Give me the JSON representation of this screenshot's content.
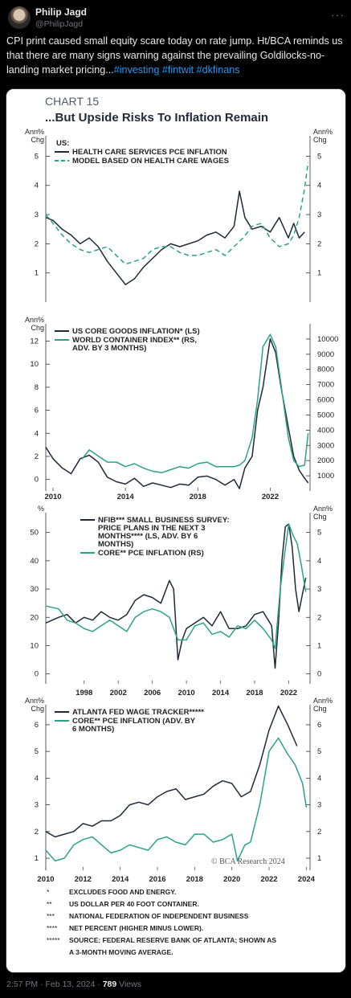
{
  "tweet": {
    "author_name": "Philip Jagd",
    "author_handle": "@PhilipJagd",
    "more_label": "···",
    "text_plain": "CPI print caused small equity scare today on rate jump. Ht/BCA reminds us that there are many signs warning against the prevailing Goldilocks-no-landing market pricing...",
    "hashtags": [
      "#investing",
      "#fintwit",
      "#dkfinans"
    ],
    "time": "2:57 PM",
    "date": "Feb 13, 2024",
    "views_count": "789",
    "views_label": "Views"
  },
  "colors": {
    "dark_series": "#1f2a36",
    "green_series": "#2aa384",
    "background": "#000000",
    "link": "#1d9bf0"
  },
  "figure": {
    "chart_number": "CHART 15",
    "chart_title": "...But Upside Risks To Inflation Remain",
    "credit": "© BCA Research 2024",
    "footnotes": [
      {
        "mark": "*",
        "text": "EXCLUDES FOOD AND ENERGY."
      },
      {
        "mark": "**",
        "text": "US DOLLAR PER 40 FOOT CONTAINER."
      },
      {
        "mark": "***",
        "text": "NATIONAL FEDERATION OF INDEPENDENT BUSINESS"
      },
      {
        "mark": "****",
        "text": "NET PERCENT (HIGHER MINUS LOWER)."
      },
      {
        "mark": "*****",
        "text": "SOURCE: FEDERAL RESERVE BANK OF ATLANTA; SHOWN AS"
      },
      {
        "mark": "",
        "text": "A 3-MONTH MOVING AVERAGE."
      }
    ]
  },
  "chart_data": [
    {
      "type": "line",
      "ylabel_left": "Ann% Chg",
      "ylabel_right": "Ann% Chg",
      "legend_heading": "US:",
      "ylim": [
        0,
        5.7
      ],
      "yticks": [
        1,
        2,
        3,
        4,
        5
      ],
      "x_range": [
        2009.6,
        2024.2
      ],
      "series": [
        {
          "name": "HEALTH CARE SERVICES PCE INFLATION",
          "style": "solid",
          "color": "#1f2a36",
          "x": [
            2009.6,
            2010.0,
            2010.5,
            2011.0,
            2011.5,
            2012.0,
            2012.5,
            2013.0,
            2013.5,
            2014.0,
            2014.5,
            2015.0,
            2015.5,
            2016.0,
            2016.5,
            2017.0,
            2017.5,
            2018.0,
            2018.5,
            2019.0,
            2019.5,
            2020.0,
            2020.3,
            2020.6,
            2021.0,
            2021.5,
            2022.0,
            2022.5,
            2023.0,
            2023.3,
            2023.6,
            2023.9
          ],
          "y": [
            2.9,
            2.8,
            2.5,
            2.3,
            2.0,
            2.2,
            1.9,
            1.4,
            1.0,
            0.6,
            0.8,
            1.2,
            1.5,
            1.8,
            2.0,
            1.9,
            2.0,
            2.1,
            2.3,
            2.4,
            2.2,
            2.6,
            3.8,
            2.9,
            2.5,
            2.6,
            2.4,
            2.9,
            2.2,
            2.7,
            2.2,
            2.4
          ]
        },
        {
          "name": "MODEL BASED ON HEALTH CARE WAGES",
          "style": "dashed",
          "color": "#2aa384",
          "x": [
            2009.6,
            2010.0,
            2010.5,
            2011.0,
            2011.5,
            2012.0,
            2012.5,
            2013.0,
            2013.5,
            2014.0,
            2014.5,
            2015.0,
            2015.5,
            2016.0,
            2016.5,
            2017.0,
            2017.5,
            2018.0,
            2018.5,
            2019.0,
            2019.5,
            2020.0,
            2020.5,
            2021.0,
            2021.5,
            2022.0,
            2022.5,
            2023.0,
            2023.3,
            2023.6,
            2023.9,
            2024.1
          ],
          "y": [
            3.0,
            2.7,
            2.3,
            2.0,
            1.8,
            1.7,
            1.8,
            1.9,
            1.6,
            1.3,
            1.4,
            1.5,
            1.8,
            1.9,
            1.9,
            1.7,
            1.6,
            1.6,
            1.7,
            1.8,
            1.6,
            1.9,
            2.2,
            2.6,
            2.7,
            2.2,
            1.9,
            2.0,
            2.3,
            2.9,
            3.9,
            4.8
          ]
        }
      ]
    },
    {
      "type": "line",
      "ylabel_left": "Ann% Chg",
      "left_ticks": [
        0,
        2,
        4,
        6,
        8,
        10,
        12
      ],
      "left_lim": [
        -1,
        13.5
      ],
      "right_ticks": [
        1000,
        2000,
        3000,
        4000,
        5000,
        6000,
        7000,
        8000,
        9000,
        10000
      ],
      "right_lim": [
        0,
        11000
      ],
      "xticks": [
        2010,
        2014,
        2018,
        2022
      ],
      "x_range": [
        2009.6,
        2024.2
      ],
      "series": [
        {
          "name": "US CORE GOODS INFLATION* (LS)",
          "color": "#1f2a36",
          "axis": "left",
          "x": [
            2009.6,
            2010.0,
            2010.5,
            2011.0,
            2011.5,
            2012.0,
            2012.5,
            2013.0,
            2013.5,
            2014.0,
            2014.5,
            2015.0,
            2015.5,
            2016.0,
            2016.5,
            2017.0,
            2017.5,
            2018.0,
            2018.5,
            2019.0,
            2019.5,
            2020.0,
            2020.3,
            2020.6,
            2021.0,
            2021.3,
            2021.6,
            2022.0,
            2022.3,
            2022.6,
            2023.0,
            2023.3,
            2023.6,
            2023.9,
            2024.1
          ],
          "y": [
            2.8,
            1.8,
            1.0,
            0.5,
            1.8,
            2.1,
            1.5,
            0.2,
            -0.2,
            -0.4,
            0.1,
            -0.6,
            -0.3,
            -0.5,
            -0.7,
            -0.4,
            -0.5,
            0.2,
            0.3,
            0.0,
            -0.5,
            0.0,
            -0.8,
            1.0,
            2.0,
            6.0,
            8.0,
            12.2,
            11.0,
            8.0,
            4.5,
            2.0,
            0.8,
            0.1,
            -0.3
          ]
        },
        {
          "name": "WORLD CONTAINER INDEX** (RS, ADV. BY 3 MONTHS)",
          "color": "#2aa384",
          "axis": "right",
          "x": [
            2011.6,
            2012.0,
            2012.5,
            2013.0,
            2013.5,
            2014.0,
            2014.5,
            2015.0,
            2015.5,
            2016.0,
            2016.5,
            2017.0,
            2017.5,
            2018.0,
            2018.5,
            2019.0,
            2019.5,
            2020.0,
            2020.3,
            2020.6,
            2021.0,
            2021.3,
            2021.6,
            2022.0,
            2022.3,
            2022.6,
            2023.0,
            2023.3,
            2023.6,
            2023.9,
            2024.1
          ],
          "y": [
            2100,
            2700,
            2300,
            1900,
            1900,
            1600,
            1800,
            1500,
            1300,
            1200,
            1400,
            1600,
            1500,
            1800,
            1900,
            1600,
            1600,
            1600,
            1700,
            2000,
            3500,
            6000,
            9500,
            10300,
            9500,
            7000,
            3500,
            2000,
            1600,
            1700,
            3800
          ]
        }
      ]
    },
    {
      "type": "line",
      "ylabel_left": "%",
      "ylabel_right": "Ann% Chg",
      "left_ticks": [
        0,
        10,
        20,
        30,
        40,
        50
      ],
      "left_lim": [
        -3.5,
        57
      ],
      "right_ticks": [
        0,
        1,
        2,
        3,
        4,
        5
      ],
      "right_lim": [
        -0.35,
        5.7
      ],
      "xticks": [
        1998,
        2002,
        2006,
        2010,
        2014,
        2018,
        2022
      ],
      "x_range": [
        1993.5,
        2024.5
      ],
      "series": [
        {
          "name": "NFIB*** SMALL BUSINESS SURVEY: PRICE PLANS IN THE NEXT 3 MONTHS**** (LS, ADV. BY 6 MONTHS)",
          "color": "#1f2a36",
          "axis": "left",
          "x": [
            1993.5,
            1995,
            1996,
            1997,
            1998,
            1999,
            2000,
            2001,
            2002,
            2003,
            2004,
            2005,
            2006,
            2007,
            2008,
            2008.5,
            2009,
            2009.5,
            2010,
            2011,
            2012,
            2013,
            2014,
            2015,
            2016,
            2017,
            2018,
            2019,
            2020,
            2020.4,
            2020.8,
            2021.2,
            2021.6,
            2022.0,
            2022.4,
            2022.8,
            2023.2,
            2023.6,
            2024.0
          ],
          "y": [
            18,
            20,
            21,
            18,
            20,
            19,
            22,
            20,
            19,
            21,
            26,
            28,
            27,
            25,
            33,
            30,
            5,
            12,
            16,
            18,
            20,
            17,
            22,
            16,
            16,
            17,
            21,
            22,
            17,
            2,
            18,
            40,
            52,
            53,
            45,
            30,
            22,
            28,
            34
          ]
        },
        {
          "name": "CORE** PCE INFLATION (RS)",
          "color": "#2aa384",
          "axis": "right",
          "x": [
            1993.5,
            1995,
            1996,
            1997,
            1998,
            1999,
            2000,
            2001,
            2002,
            2003,
            2004,
            2005,
            2006,
            2007,
            2008,
            2009,
            2010,
            2011,
            2012,
            2013,
            2014,
            2015,
            2016,
            2017,
            2018,
            2019,
            2020,
            2020.4,
            2021,
            2021.5,
            2022,
            2022.5,
            2023,
            2023.5,
            2024.0
          ],
          "y": [
            2.4,
            2.3,
            1.9,
            1.8,
            1.6,
            1.5,
            1.7,
            1.9,
            1.7,
            1.5,
            2.0,
            2.2,
            2.3,
            2.2,
            2.0,
            1.2,
            1.2,
            1.7,
            1.8,
            1.4,
            1.5,
            1.3,
            1.7,
            1.6,
            1.9,
            1.6,
            1.2,
            0.9,
            3.0,
            4.2,
            5.3,
            4.9,
            4.6,
            3.8,
            2.9
          ]
        }
      ]
    },
    {
      "type": "line",
      "ylabel_left": "Ann% Chg",
      "ylabel_right": "Ann% Chg",
      "left_ticks": [
        1,
        2,
        3,
        4,
        5,
        6
      ],
      "right_ticks": [
        1,
        2,
        3,
        4,
        5,
        6
      ],
      "ylim": [
        0.55,
        6.75
      ],
      "xticks": [
        2010,
        2012,
        2014,
        2016,
        2018,
        2020,
        2022,
        2024
      ],
      "x_range": [
        2010,
        2024.2
      ],
      "series": [
        {
          "name": "ATLANTA FED WAGE TRACKER*****",
          "color": "#1f2a36",
          "x": [
            2010,
            2010.5,
            2011,
            2011.5,
            2012,
            2012.5,
            2013,
            2013.5,
            2014,
            2014.5,
            2015,
            2015.5,
            2016,
            2016.5,
            2017,
            2017.5,
            2018,
            2018.5,
            2019,
            2019.5,
            2020,
            2020.5,
            2021,
            2021.5,
            2022,
            2022.5,
            2023,
            2023.5
          ],
          "y": [
            2.0,
            1.8,
            1.9,
            2.0,
            2.3,
            2.2,
            2.4,
            2.4,
            2.6,
            3.0,
            3.1,
            3.0,
            3.3,
            3.5,
            3.6,
            3.2,
            3.3,
            3.4,
            3.7,
            3.9,
            3.8,
            3.3,
            3.5,
            4.5,
            5.8,
            6.7,
            6.0,
            5.2
          ]
        },
        {
          "name": "CORE** PCE INFLATION (ADV. BY 6 MONTHS)",
          "color": "#2aa384",
          "x": [
            2010,
            2010.5,
            2011,
            2011.5,
            2012,
            2012.5,
            2013,
            2013.5,
            2014,
            2014.5,
            2015,
            2015.5,
            2016,
            2016.5,
            2017,
            2017.5,
            2018,
            2018.5,
            2019,
            2019.5,
            2020,
            2020.3,
            2020.7,
            2021,
            2021.5,
            2022,
            2022.5,
            2023,
            2023.4,
            2023.8,
            2024.0
          ],
          "y": [
            1.3,
            0.9,
            1.0,
            1.5,
            1.7,
            1.8,
            1.5,
            1.2,
            1.3,
            1.5,
            1.4,
            1.3,
            1.7,
            1.8,
            1.6,
            1.5,
            1.9,
            1.9,
            1.6,
            1.7,
            1.9,
            0.9,
            1.5,
            1.6,
            3.0,
            5.0,
            5.5,
            4.9,
            4.5,
            3.8,
            2.9
          ]
        }
      ]
    }
  ]
}
